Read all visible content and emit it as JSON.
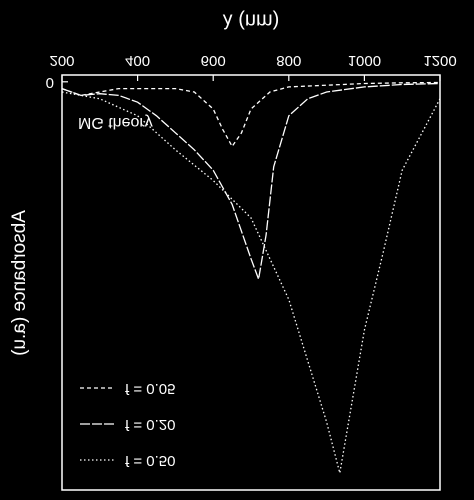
{
  "chart_data": {
    "type": "line",
    "title": "MG theory",
    "x_label": "λ (nm)",
    "y_label": "Absorbance (a.u)",
    "xlim": [
      200,
      1200
    ],
    "xticks": [
      200,
      400,
      600,
      800,
      1000,
      1200
    ],
    "ylim": [
      -0.02,
      1.2
    ],
    "yticks": [
      0
    ],
    "flipped_vertically": true,
    "series": [
      {
        "name": "f = 0.05",
        "color": "#ffffff",
        "dash": "4 3",
        "x": [
          200,
          250,
          300,
          350,
          400,
          450,
          500,
          550,
          600,
          625,
          650,
          675,
          700,
          750,
          800,
          900,
          1000,
          1100,
          1200
        ],
        "values": [
          0.02,
          0.04,
          0.03,
          0.02,
          0.02,
          0.02,
          0.02,
          0.03,
          0.08,
          0.14,
          0.19,
          0.15,
          0.08,
          0.03,
          0.015,
          0.01,
          0.005,
          0.003,
          0.002
        ]
      },
      {
        "name": "f = 0.20",
        "color": "#ffffff",
        "dash": "10 2",
        "x": [
          200,
          250,
          300,
          350,
          400,
          450,
          500,
          550,
          600,
          650,
          700,
          720,
          740,
          760,
          800,
          850,
          900,
          1000,
          1100,
          1200
        ],
        "values": [
          0.02,
          0.04,
          0.035,
          0.04,
          0.06,
          0.1,
          0.15,
          0.2,
          0.26,
          0.36,
          0.52,
          0.58,
          0.45,
          0.25,
          0.1,
          0.05,
          0.03,
          0.015,
          0.008,
          0.005
        ]
      },
      {
        "name": "f = 0.50",
        "color": "#ffffff",
        "dash": "1.5 2.5",
        "x": [
          200,
          300,
          400,
          450,
          500,
          600,
          700,
          800,
          900,
          935,
          1000,
          1050,
          1100,
          1200
        ],
        "values": [
          0.03,
          0.05,
          0.1,
          0.15,
          0.2,
          0.29,
          0.4,
          0.64,
          1.0,
          1.15,
          0.73,
          0.5,
          0.26,
          0.05
        ]
      }
    ]
  }
}
